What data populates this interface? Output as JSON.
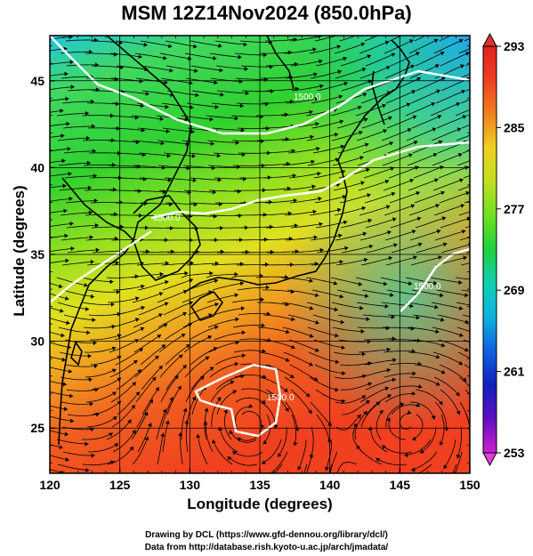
{
  "title": "MSM 12Z14Nov2024 (850.0hPa)",
  "x_axis": {
    "label": "Longitude (degrees)",
    "ticks": [
      "120",
      "125",
      "130",
      "135",
      "140",
      "145",
      "150"
    ],
    "range": [
      120,
      150
    ]
  },
  "y_axis": {
    "label": "Latitude  (degrees)",
    "ticks": [
      "25",
      "30",
      "35",
      "40",
      "45"
    ],
    "range": [
      22.4,
      47.6
    ]
  },
  "colorbar": {
    "ticks": [
      "293",
      "285",
      "277",
      "269",
      "261",
      "253"
    ],
    "range": [
      253,
      293
    ],
    "colors": [
      "#d020d0",
      "#6010c0",
      "#1020c0",
      "#1060e0",
      "#10b0e0",
      "#10d0b0",
      "#20d040",
      "#70e020",
      "#c0e020",
      "#f0d020",
      "#f08020",
      "#f04020",
      "#e02020"
    ]
  },
  "contour_labels": [
    "1500.0",
    "1500.0",
    "1500.0",
    "1500.0"
  ],
  "credits": [
    "Drawing by DCL (https://www.gfd-dennou.org/library/dcl/)",
    "Data from http://database.rish.kyoto-u.ac.jp/arch/jmadata/"
  ]
}
